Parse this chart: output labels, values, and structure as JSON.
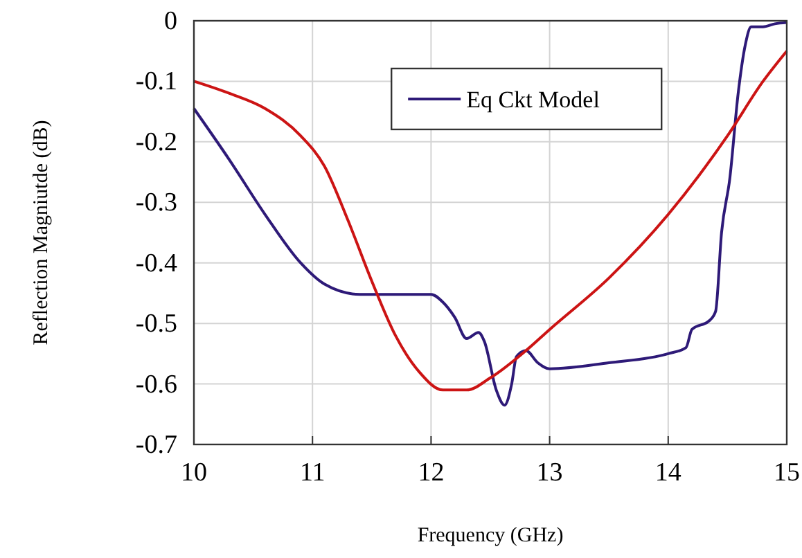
{
  "chart_data": {
    "type": "line",
    "xlabel": "Frequency (GHz)",
    "ylabel": "Reflection Magniutde (dB)",
    "xlim": [
      10,
      15
    ],
    "ylim": [
      -0.7,
      0
    ],
    "xticks": [
      10,
      11,
      12,
      13,
      14,
      15
    ],
    "yticks": [
      -0.7,
      -0.6,
      -0.5,
      -0.4,
      -0.3,
      -0.2,
      -0.1,
      0
    ],
    "grid": true,
    "legend": "top",
    "marker": "none",
    "line_style": "solid",
    "series": [
      {
        "name": "Eq Ckt Model",
        "color": "#2e1a78",
        "x": [
          10,
          10.3,
          10.6,
          10.9,
          11.1,
          11.4,
          11.8,
          12.0,
          12.1,
          12.2,
          12.3,
          12.4,
          12.45,
          12.55,
          12.62,
          12.68,
          12.72,
          12.8,
          12.9,
          13.0,
          13.5,
          14.0,
          14.15,
          14.2,
          14.35,
          14.4,
          14.45,
          14.52,
          14.59,
          14.65,
          14.7,
          14.8,
          14.9,
          15.0
        ],
        "values": [
          -0.145,
          -0.23,
          -0.32,
          -0.4,
          -0.435,
          -0.452,
          -0.452,
          -0.452,
          -0.465,
          -0.49,
          -0.525,
          -0.515,
          -0.53,
          -0.61,
          -0.635,
          -0.6,
          -0.555,
          -0.545,
          -0.565,
          -0.575,
          -0.565,
          -0.55,
          -0.54,
          -0.51,
          -0.495,
          -0.48,
          -0.35,
          -0.26,
          -0.12,
          -0.04,
          -0.01,
          -0.01,
          -0.005,
          -0.003
        ]
      },
      {
        "color": "#cc1414",
        "x": [
          10,
          10.3,
          10.6,
          10.9,
          11.1,
          11.3,
          11.5,
          11.7,
          11.9,
          12.1,
          12.3,
          12.5,
          12.8,
          13.0,
          13.5,
          14.0,
          14.5,
          14.8,
          15
        ],
        "values": [
          -0.1,
          -0.12,
          -0.145,
          -0.19,
          -0.24,
          -0.33,
          -0.43,
          -0.52,
          -0.58,
          -0.61,
          -0.61,
          -0.59,
          -0.545,
          -0.51,
          -0.425,
          -0.32,
          -0.19,
          -0.1,
          -0.05
        ]
      }
    ]
  }
}
